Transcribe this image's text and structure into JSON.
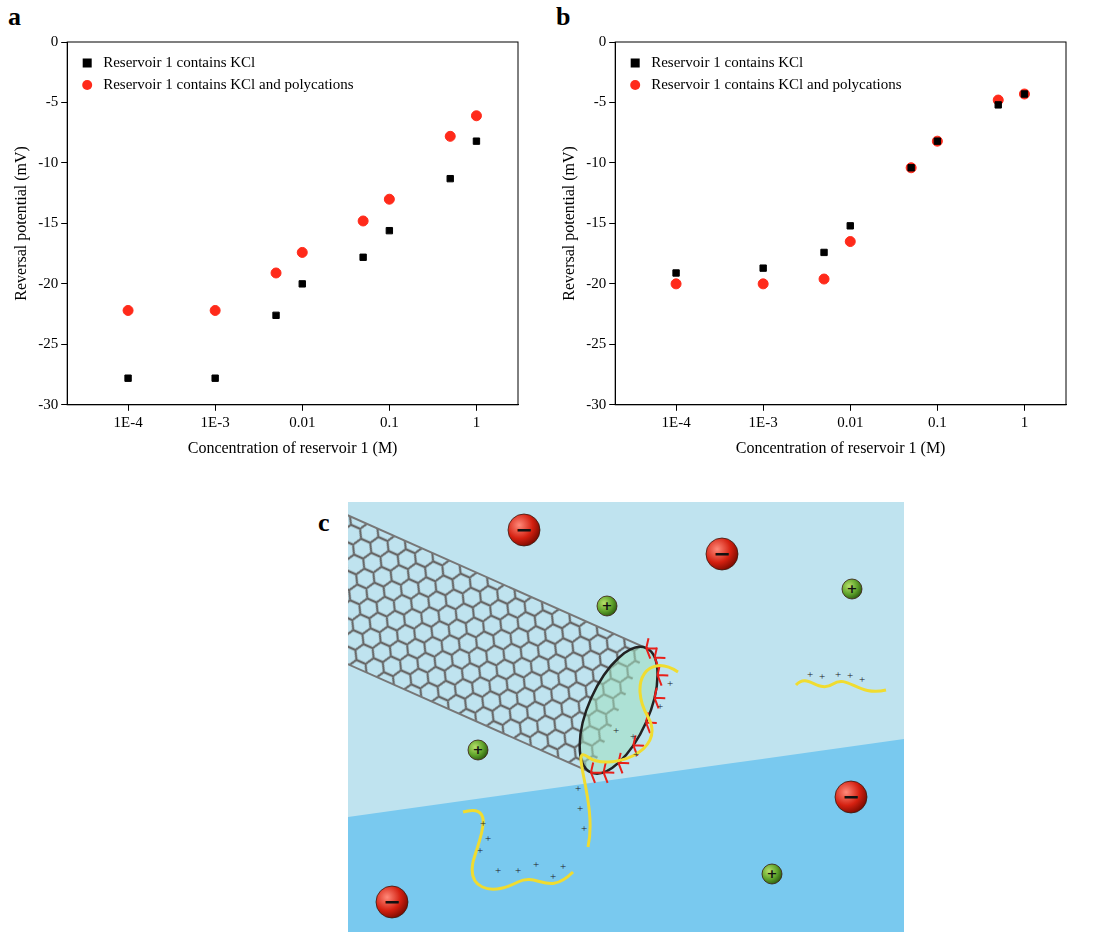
{
  "chart_data": [
    {
      "type": "scatter",
      "panel_label": "a",
      "x_label": "Concentration of reservoir 1 (M)",
      "y_label": "Reversal potential (mV)",
      "x": [
        0.0001,
        0.001,
        0.005,
        0.01,
        0.05,
        0.1,
        0.5,
        1
      ],
      "series": [
        {
          "name": "Reservoir 1 contains KCl",
          "color": "#000000",
          "marker": "square",
          "values": [
            -27.8,
            -27.8,
            -22.6,
            -20.0,
            -17.8,
            -15.6,
            -11.3,
            -8.2
          ]
        },
        {
          "name": "Reservoir 1 contains KCl and polycations",
          "color": "#ff2a1a",
          "marker": "circle",
          "values": [
            -22.2,
            -22.2,
            -19.1,
            -17.4,
            -14.8,
            -13.0,
            -7.8,
            -6.1
          ]
        }
      ],
      "log": "x",
      "xlim": [
        2e-05,
        3
      ],
      "xticks": [
        {
          "value": 0.0001,
          "label": "1E-4"
        },
        {
          "value": 0.001,
          "label": "1E-3"
        },
        0.01,
        0.1,
        1
      ],
      "ylim": [
        -30,
        0
      ],
      "yticks": [
        -30,
        -25,
        -20,
        -15,
        -10,
        -5,
        0
      ],
      "grid": false,
      "legend": "upper left"
    },
    {
      "type": "scatter",
      "panel_label": "b",
      "x_label": "Concentration of reservoir 1 (M)",
      "y_label": "Reversal potential (mV)",
      "x": [
        0.0001,
        0.001,
        0.005,
        0.01,
        0.05,
        0.1,
        0.5,
        1
      ],
      "series": [
        {
          "name": "Reservoir 1 contains KCl",
          "color": "#000000",
          "marker": "square",
          "values": [
            -19.1,
            -18.7,
            -17.4,
            -15.2,
            -10.4,
            -8.2,
            -5.2,
            -4.3
          ]
        },
        {
          "name": "Reservoir 1 contains KCl and polycations",
          "color": "#ff2a1a",
          "marker": "circle",
          "values": [
            -20.0,
            -20.0,
            -19.6,
            -16.5,
            -10.4,
            -8.2,
            -4.8,
            -4.3
          ]
        }
      ],
      "log": "x",
      "xlim": [
        2e-05,
        3
      ],
      "xticks": [
        {
          "value": 0.0001,
          "label": "1E-4"
        },
        {
          "value": 0.001,
          "label": "1E-3"
        },
        0.01,
        0.1,
        1
      ],
      "ylim": [
        -30,
        0
      ],
      "yticks": [
        -30,
        -25,
        -20,
        -15,
        -10,
        -5,
        0
      ],
      "grid": false,
      "legend": "upper left"
    }
  ],
  "diagram": {
    "panel_label": "c",
    "anion_sign": "−",
    "cation_sign": "+"
  }
}
